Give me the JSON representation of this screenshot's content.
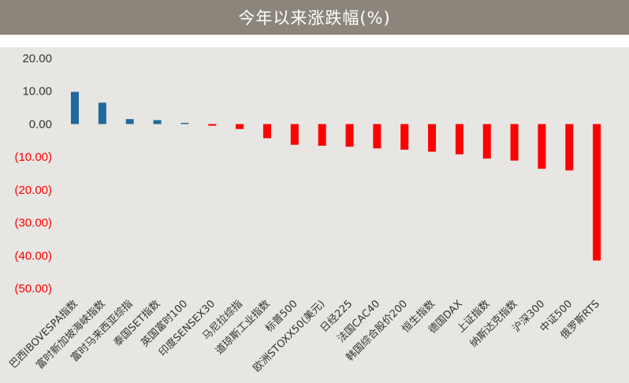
{
  "header": {
    "title": "今年以来涨跌幅(%)"
  },
  "colors": {
    "positive": "#1f6a9a",
    "negative": "#ff0000",
    "axis_positive_text": "#333333",
    "axis_negative_text": "#ff0000",
    "header_bg": "#8c857b"
  },
  "chart_data": {
    "type": "bar",
    "title": "今年以来涨跌幅(%)",
    "xlabel": "",
    "ylabel": "",
    "ylim": [
      -50,
      20
    ],
    "grid": false,
    "legend": "none",
    "y_tick_labels": [
      "20.00",
      "10.00",
      "0.00",
      "(10.00)",
      "(20.00)",
      "(30.00)",
      "(40.00)",
      "(50.00)"
    ],
    "y_tick_values": [
      20,
      10,
      0,
      -10,
      -20,
      -30,
      -40,
      -50
    ],
    "categories": [
      "巴西IBOVESPA指数",
      "富时新加坡海峡指数",
      "富时马来西亚综指",
      "泰国SET指数",
      "英国富时100",
      "印度SENSEX30",
      "马尼拉综指",
      "道琼斯工业指数",
      "标普500",
      "欧洲STOXX50(美元)",
      "日经225",
      "法国CAC40",
      "韩国综合股价200",
      "恒生指数",
      "德国DAX",
      "上证指数",
      "纳斯达克指数",
      "沪深300",
      "中证500",
      "俄罗斯RTS"
    ],
    "values": [
      9.8,
      6.5,
      1.5,
      1.2,
      0.3,
      -0.5,
      -1.5,
      -4.3,
      -6.3,
      -6.6,
      -6.9,
      -7.4,
      -7.8,
      -8.4,
      -9.2,
      -10.5,
      -11.1,
      -13.6,
      -14.1,
      -41.5
    ]
  }
}
